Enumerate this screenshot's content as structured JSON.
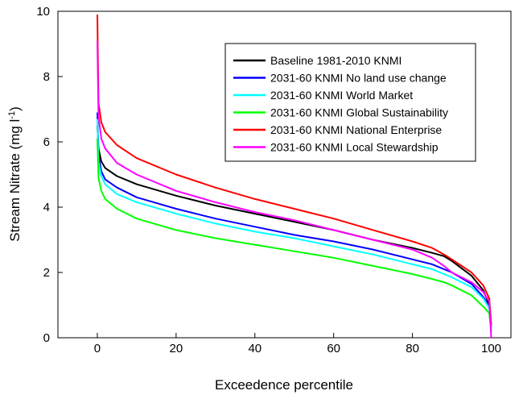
{
  "chart_data": {
    "type": "line",
    "xlabel": "Exceedence percentile",
    "ylabel": "Stream Nitrate (mg l",
    "ylabel_superscript": "-1",
    "ylabel_suffix": ")",
    "xlim": [
      -10,
      105
    ],
    "ylim": [
      0,
      10
    ],
    "xticks": [
      0,
      20,
      40,
      60,
      80,
      100
    ],
    "yticks": [
      0,
      2,
      4,
      6,
      8,
      10
    ],
    "grid": false,
    "legend_position": "top-right",
    "series": [
      {
        "name": "Baseline 1981-2010 KNMI",
        "color": "#000000",
        "x": [
          0,
          0.3,
          1,
          2,
          5,
          10,
          20,
          30,
          40,
          50,
          60,
          70,
          80,
          85,
          88,
          90,
          95,
          98,
          99.5,
          100
        ],
        "y": [
          6.5,
          5.8,
          5.4,
          5.2,
          4.95,
          4.7,
          4.35,
          4.05,
          3.8,
          3.55,
          3.3,
          3.0,
          2.75,
          2.6,
          2.5,
          2.35,
          1.9,
          1.45,
          1.0,
          0.3
        ]
      },
      {
        "name": "2031-60 KNMI No land use change",
        "color": "#0000FF",
        "x": [
          0,
          0.3,
          1,
          2,
          5,
          10,
          20,
          30,
          40,
          50,
          60,
          70,
          80,
          85,
          88,
          90,
          95,
          98,
          99.5,
          100
        ],
        "y": [
          6.9,
          5.6,
          5.1,
          4.85,
          4.6,
          4.3,
          3.95,
          3.65,
          3.4,
          3.15,
          2.95,
          2.7,
          2.4,
          2.25,
          2.1,
          2.0,
          1.65,
          1.25,
          0.95,
          0.3
        ]
      },
      {
        "name": "2031-60 KNMI World Market",
        "color": "#00FFFF",
        "x": [
          0,
          0.3,
          1,
          2,
          5,
          10,
          20,
          30,
          40,
          50,
          60,
          70,
          80,
          85,
          88,
          90,
          95,
          98,
          99.5,
          100
        ],
        "y": [
          6.7,
          5.4,
          4.95,
          4.7,
          4.4,
          4.15,
          3.8,
          3.5,
          3.25,
          3.05,
          2.8,
          2.55,
          2.25,
          2.1,
          1.95,
          1.85,
          1.55,
          1.2,
          0.9,
          0.3
        ]
      },
      {
        "name": "2031-60 KNMI Global Sustainability",
        "color": "#00FF00",
        "x": [
          0,
          0.3,
          1,
          2,
          5,
          10,
          20,
          30,
          40,
          50,
          60,
          70,
          80,
          85,
          88,
          90,
          95,
          98,
          99.5,
          100
        ],
        "y": [
          6.1,
          4.9,
          4.5,
          4.25,
          3.95,
          3.65,
          3.3,
          3.05,
          2.85,
          2.65,
          2.45,
          2.2,
          1.95,
          1.8,
          1.7,
          1.6,
          1.3,
          0.95,
          0.75,
          0.2
        ]
      },
      {
        "name": "2031-60 KNMI National Enterprise",
        "color": "#FF0000",
        "x": [
          0,
          0.3,
          1,
          2,
          5,
          10,
          20,
          30,
          40,
          50,
          60,
          70,
          80,
          85,
          88,
          90,
          95,
          98,
          99.5,
          100
        ],
        "y": [
          9.9,
          7.2,
          6.6,
          6.3,
          5.9,
          5.5,
          5.0,
          4.6,
          4.25,
          3.95,
          3.65,
          3.3,
          2.95,
          2.75,
          2.55,
          2.4,
          2.0,
          1.6,
          1.2,
          0.4
        ]
      },
      {
        "name": "2031-60 KNMI Local Stewardship",
        "color": "#FF00FF",
        "x": [
          0,
          0.3,
          1,
          2,
          5,
          10,
          20,
          30,
          40,
          50,
          60,
          70,
          80,
          85,
          88,
          90,
          95,
          98,
          99.5,
          100
        ],
        "y": [
          9.1,
          6.8,
          6.1,
          5.8,
          5.35,
          5.0,
          4.5,
          4.15,
          3.85,
          3.6,
          3.3,
          3.0,
          2.7,
          2.45,
          2.2,
          2.0,
          1.7,
          1.4,
          1.1,
          0.0
        ]
      }
    ]
  }
}
